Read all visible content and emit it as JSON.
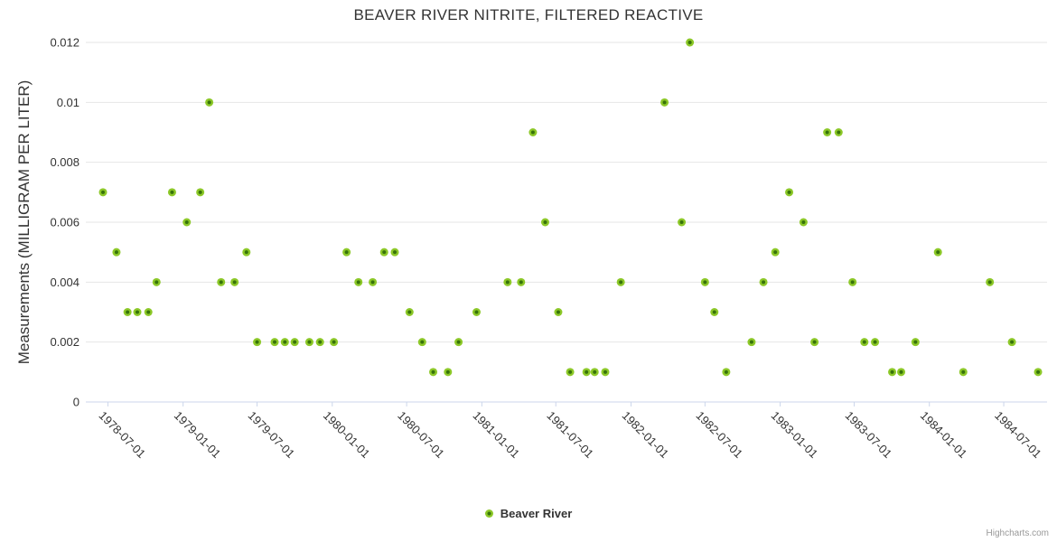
{
  "legend": {
    "label": "Beaver River"
  },
  "credits": {
    "label": "Highcharts.com"
  },
  "colors": {
    "grid": "#e6e6e6",
    "axis": "#ccd6eb",
    "text": "#333333",
    "credits": "#999999",
    "marker_fill": "#8cc828",
    "marker_core": "#37730a"
  },
  "chart_data": {
    "type": "scatter",
    "title": "BEAVER RIVER NITRITE, FILTERED REACTIVE",
    "xlabel": "",
    "ylabel": "Measurements (MILLIGRAM PER LITER)",
    "ylim": [
      0,
      0.012
    ],
    "yticks": [
      0,
      0.002,
      0.004,
      0.006,
      0.008,
      0.01,
      0.012
    ],
    "xlim": [
      "1978-05-08",
      "1984-10-15"
    ],
    "xticks": [
      "1978-07-01",
      "1979-01-01",
      "1979-07-01",
      "1980-01-01",
      "1980-07-01",
      "1981-01-01",
      "1981-07-01",
      "1982-01-01",
      "1982-07-01",
      "1983-01-01",
      "1983-07-01",
      "1984-01-01",
      "1984-07-01"
    ],
    "grid": "horizontal",
    "legend_position": "bottom-center",
    "marker_radius": 4.5,
    "series": [
      {
        "name": "Beaver River",
        "points": [
          [
            "1978-06-19",
            0.007
          ],
          [
            "1978-07-22",
            0.005
          ],
          [
            "1978-08-18",
            0.003
          ],
          [
            "1978-09-11",
            0.003
          ],
          [
            "1978-10-08",
            0.003
          ],
          [
            "1978-10-28",
            0.004
          ],
          [
            "1978-12-05",
            0.007
          ],
          [
            "1979-01-10",
            0.006
          ],
          [
            "1979-02-12",
            0.007
          ],
          [
            "1979-03-06",
            0.01
          ],
          [
            "1979-04-04",
            0.004
          ],
          [
            "1979-05-07",
            0.004
          ],
          [
            "1979-06-05",
            0.005
          ],
          [
            "1979-07-01",
            0.002
          ],
          [
            "1979-08-13",
            0.002
          ],
          [
            "1979-09-07",
            0.002
          ],
          [
            "1979-10-01",
            0.002
          ],
          [
            "1979-11-06",
            0.002
          ],
          [
            "1979-12-02",
            0.002
          ],
          [
            "1980-01-05",
            0.002
          ],
          [
            "1980-02-05",
            0.005
          ],
          [
            "1980-03-05",
            0.004
          ],
          [
            "1980-04-09",
            0.004
          ],
          [
            "1980-05-07",
            0.005
          ],
          [
            "1980-06-02",
            0.005
          ],
          [
            "1980-07-08",
            0.003
          ],
          [
            "1980-08-08",
            0.002
          ],
          [
            "1980-09-04",
            0.001
          ],
          [
            "1980-10-10",
            0.001
          ],
          [
            "1980-11-05",
            0.002
          ],
          [
            "1980-12-19",
            0.003
          ],
          [
            "1981-03-05",
            0.004
          ],
          [
            "1981-04-07",
            0.004
          ],
          [
            "1981-05-06",
            0.009
          ],
          [
            "1981-06-05",
            0.006
          ],
          [
            "1981-07-07",
            0.003
          ],
          [
            "1981-08-05",
            0.001
          ],
          [
            "1981-09-14",
            0.001
          ],
          [
            "1981-10-04",
            0.001
          ],
          [
            "1981-10-30",
            0.001
          ],
          [
            "1981-12-07",
            0.004
          ],
          [
            "1982-03-24",
            0.01
          ],
          [
            "1982-05-05",
            0.006
          ],
          [
            "1982-05-25",
            0.012
          ],
          [
            "1982-07-01",
            0.004
          ],
          [
            "1982-07-24",
            0.003
          ],
          [
            "1982-08-22",
            0.001
          ],
          [
            "1982-10-23",
            0.002
          ],
          [
            "1982-11-21",
            0.004
          ],
          [
            "1982-12-20",
            0.005
          ],
          [
            "1983-01-23",
            0.007
          ],
          [
            "1983-02-27",
            0.006
          ],
          [
            "1983-03-26",
            0.002
          ],
          [
            "1983-04-26",
            0.009
          ],
          [
            "1983-05-24",
            0.009
          ],
          [
            "1983-06-27",
            0.004
          ],
          [
            "1983-07-26",
            0.002
          ],
          [
            "1983-08-21",
            0.002
          ],
          [
            "1983-10-02",
            0.001
          ],
          [
            "1983-10-24",
            0.001
          ],
          [
            "1983-11-28",
            0.002
          ],
          [
            "1984-01-22",
            0.005
          ],
          [
            "1984-03-24",
            0.001
          ],
          [
            "1984-05-28",
            0.004
          ],
          [
            "1984-07-21",
            0.002
          ],
          [
            "1984-09-23",
            0.001
          ]
        ]
      }
    ]
  }
}
